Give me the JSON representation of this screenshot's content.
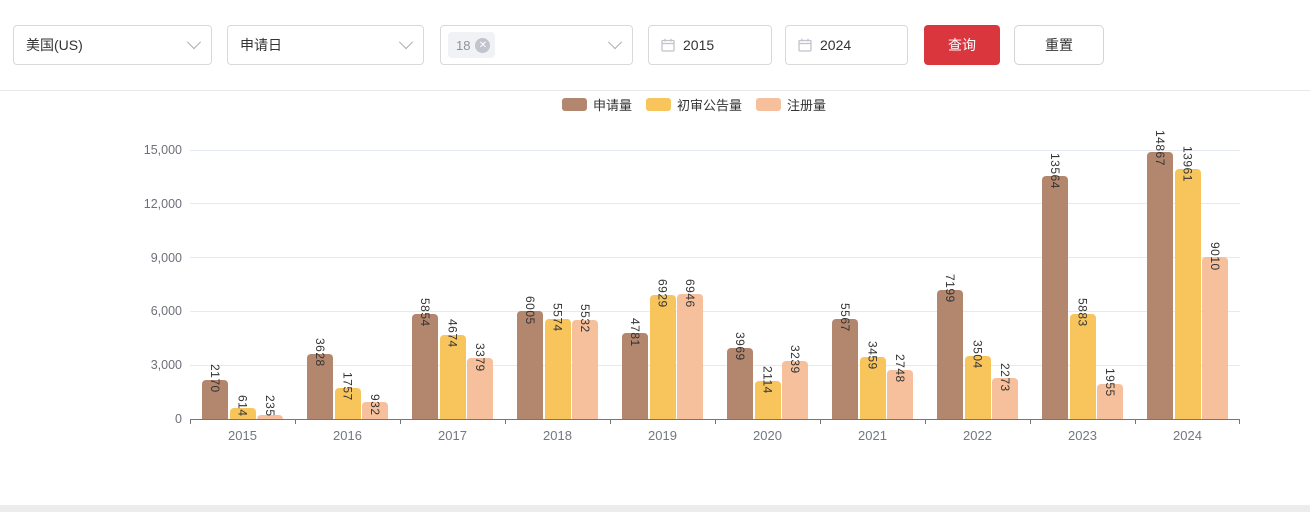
{
  "toolbar": {
    "country_select": {
      "value": "美国(US)"
    },
    "date_field_select": {
      "value": "申请日"
    },
    "class_select": {
      "tag_label": "18",
      "tag_close": "✕"
    },
    "start_date_input": {
      "value": "2015"
    },
    "end_date_input": {
      "value": "2024"
    },
    "query_button_label": "查询",
    "reset_button_label": "重置",
    "query_button_color": "#d9363e"
  },
  "chart_data": {
    "type": "bar",
    "title": "",
    "xlabel": "",
    "ylabel": "",
    "categories": [
      "2015",
      "2016",
      "2017",
      "2018",
      "2019",
      "2020",
      "2021",
      "2022",
      "2023",
      "2024"
    ],
    "series": [
      {
        "name": "申请量",
        "color": "#b2876e",
        "values": [
          2170,
          3628,
          5854,
          6005,
          4781,
          3969,
          5567,
          7199,
          13564,
          14867
        ]
      },
      {
        "name": "初审公告量",
        "color": "#f7c55c",
        "values": [
          614,
          1757,
          4674,
          5574,
          6929,
          2114,
          3459,
          3504,
          5883,
          13961
        ]
      },
      {
        "name": "注册量",
        "color": "#f5c09b",
        "values": [
          235,
          932,
          3379,
          5532,
          6946,
          3239,
          2748,
          2273,
          1955,
          9010
        ]
      }
    ],
    "ylim": [
      0,
      15000
    ],
    "yticks": [
      0,
      3000,
      6000,
      9000,
      12000,
      15000
    ],
    "ytick_labels": [
      "0",
      "3,000",
      "6,000",
      "9,000",
      "12,000",
      "15,000"
    ],
    "grid": true,
    "legend_position": "top",
    "bar_value_labels": true
  }
}
